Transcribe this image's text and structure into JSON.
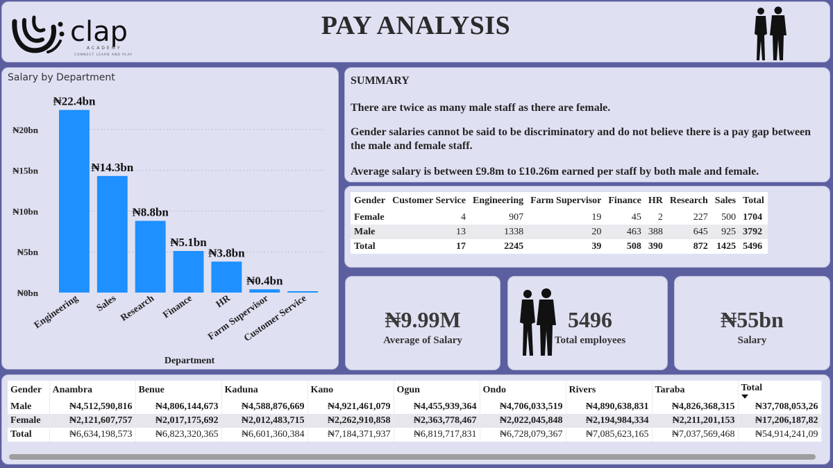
{
  "header": {
    "title": "PAY ANALYSIS",
    "logo": {
      "brand": "clap",
      "sub1": "ACADEMY",
      "sub2": "CONNECT LEARN AND PLAY"
    }
  },
  "colors": {
    "bar": "#1e90ff",
    "panel": "#dfe1f3",
    "page": "#5b5fa0"
  },
  "icons": {
    "header_people": "businesspeople-silhouette-icon",
    "kpi_people": "businesspeople-silhouette-icon"
  },
  "chart_data": {
    "type": "bar",
    "title": "Salary by Department",
    "xlabel": "Department",
    "ylabel": "",
    "ylim": [
      0,
      25
    ],
    "yticks": [
      0,
      5,
      10,
      15,
      20
    ],
    "ytick_labels": [
      "₦0bn",
      "₦5bn",
      "₦10bn",
      "₦15bn",
      "₦20bn"
    ],
    "categories": [
      "Engineering",
      "Sales",
      "Research",
      "Finance",
      "HR",
      "Farm Supervisor",
      "Customer Service"
    ],
    "values": [
      22.4,
      14.3,
      8.8,
      5.1,
      3.8,
      0.4,
      0.17
    ],
    "data_labels": [
      "₦22.4bn",
      "₦14.3bn",
      "₦8.8bn",
      "₦5.1bn",
      "₦3.8bn",
      "₦0.4bn",
      ""
    ],
    "grid": true,
    "legend": "none"
  },
  "summary": {
    "heading": "SUMMARY",
    "lines": [
      "There are twice as many male staff as there are female.",
      "Gender salaries cannot be said to be discriminatory and do not believe there is a pay gap between the male and female staff.",
      "Average salary is between £9.8m to £10.26m earned per staff by both male and female."
    ]
  },
  "gender_dept_table": {
    "headers": [
      "Gender",
      "Customer Service",
      "Engineering",
      "Farm Supervisor",
      "Finance",
      "HR",
      "Research",
      "Sales",
      "Total"
    ],
    "rows": [
      [
        "Female",
        "4",
        "907",
        "19",
        "45",
        "2",
        "227",
        "500",
        "1704"
      ],
      [
        "Male",
        "13",
        "1338",
        "20",
        "463",
        "388",
        "645",
        "925",
        "3792"
      ],
      [
        "Total",
        "17",
        "2245",
        "39",
        "508",
        "390",
        "872",
        "1425",
        "5496"
      ]
    ]
  },
  "kpis": {
    "avg_salary": {
      "value": "₦9.99M",
      "label": "Average of Salary"
    },
    "employees": {
      "value": "5496",
      "label": "Total employees"
    },
    "salary": {
      "value": "₦55bn",
      "label": "Salary"
    }
  },
  "state_table": {
    "headers": [
      "Gender",
      "Anambra",
      "Benue",
      "Kaduna",
      "Kano",
      "Ogun",
      "Ondo",
      "Rivers",
      "Taraba",
      "Total"
    ],
    "rows": [
      [
        "Male",
        "₦4,512,590,816",
        "₦4,806,144,673",
        "₦4,588,876,669",
        "₦4,921,461,079",
        "₦4,455,939,364",
        "₦4,706,033,519",
        "₦4,890,638,831",
        "₦4,826,368,315",
        "₦37,708,053,26"
      ],
      [
        "Female",
        "₦2,121,607,757",
        "₦2,017,175,692",
        "₦2,012,483,715",
        "₦2,262,910,858",
        "₦2,363,778,467",
        "₦2,022,045,848",
        "₦2,194,984,334",
        "₦2,211,201,153",
        "₦17,206,187,82"
      ],
      [
        "Total",
        "₦6,634,198,573",
        "₦6,823,320,365",
        "₦6,601,360,384",
        "₦7,184,371,937",
        "₦6,819,717,831",
        "₦6,728,079,367",
        "₦7,085,623,165",
        "₦7,037,569,468",
        "₦54,914,241,09"
      ]
    ]
  }
}
